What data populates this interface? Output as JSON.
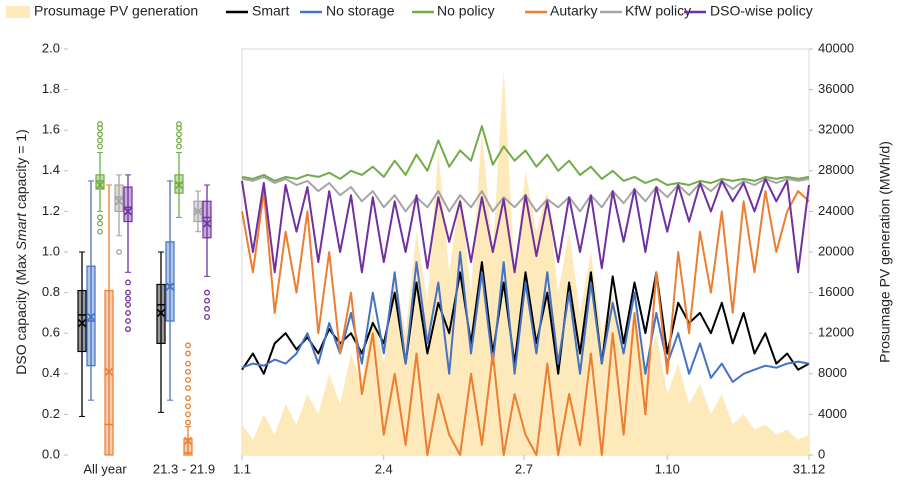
{
  "chart_data": [
    {
      "type": "box",
      "ylabel": [
        "DSO capacity (Max ",
        "Smart",
        " capacity = 1)"
      ],
      "ylim": [
        0,
        2
      ],
      "yticks": [
        {
          "value": 0,
          "label": "0.0"
        },
        {
          "value": 0.2,
          "label": "0.2"
        },
        {
          "value": 0.4,
          "label": "0.4"
        },
        {
          "value": 0.6,
          "label": "0.6"
        },
        {
          "value": 0.8,
          "label": "0.8"
        },
        {
          "value": 1,
          "label": "1.0"
        },
        {
          "value": 1.2,
          "label": "1.2"
        },
        {
          "value": 1.4,
          "label": "1.4"
        },
        {
          "value": 1.6,
          "label": "1.6"
        },
        {
          "value": 1.8,
          "label": "1.8"
        },
        {
          "value": 2,
          "label": "2.0"
        }
      ],
      "categories": [
        "All year",
        "21.3 - 21.9"
      ],
      "series": [
        {
          "color": "#000000",
          "boxes": [
            {
              "min": 0.19,
              "q1": 0.51,
              "median": 0.69,
              "q3": 0.81,
              "max": 1.0,
              "mean": 0.65,
              "outliers": []
            },
            {
              "min": 0.21,
              "q1": 0.55,
              "median": 0.74,
              "q3": 0.84,
              "max": 1.0,
              "mean": 0.7,
              "outliers": []
            }
          ]
        },
        {
          "color": "#4472c4",
          "boxes": [
            {
              "min": 0.27,
              "q1": 0.44,
              "median": 0.66,
              "q3": 0.93,
              "max": 1.35,
              "mean": 0.68,
              "outliers": []
            },
            {
              "min": 0.27,
              "q1": 0.66,
              "median": 0.84,
              "q3": 1.05,
              "max": 1.35,
              "mean": 0.83,
              "outliers": []
            }
          ]
        },
        {
          "color": "#70ad47",
          "boxes": [
            {
              "min": 1.2,
              "q1": 1.31,
              "median": 1.35,
              "q3": 1.38,
              "max": 1.49,
              "mean": 1.33,
              "outliers": [
                1.52,
                1.55,
                1.58,
                1.61,
                1.63,
                1.17,
                1.14,
                1.1
              ]
            },
            {
              "min": 1.17,
              "q1": 1.29,
              "median": 1.34,
              "q3": 1.38,
              "max": 1.49,
              "mean": 1.33,
              "outliers": [
                1.52,
                1.55,
                1.58,
                1.61,
                1.63
              ]
            }
          ]
        },
        {
          "color": "#ed7d31",
          "boxes": [
            {
              "min": 0,
              "q1": 0,
              "median": 0.15,
              "q3": 0.81,
              "max": 1.33,
              "mean": 0.41,
              "outliers": []
            },
            {
              "min": 0,
              "q1": 0,
              "median": 0.01,
              "q3": 0.08,
              "max": 0.14,
              "mean": 0.07,
              "outliers": [
                0.16,
                0.2,
                0.24,
                0.28,
                0.33,
                0.37,
                0.41,
                0.45,
                0.5,
                0.54
              ]
            }
          ]
        },
        {
          "color": "#a5a5a5",
          "boxes": [
            {
              "min": 1.08,
              "q1": 1.2,
              "median": 1.27,
              "q3": 1.33,
              "max": 1.38,
              "mean": 1.25,
              "outliers": [
                1.0
              ]
            },
            {
              "min": 1.1,
              "q1": 1.15,
              "median": 1.2,
              "q3": 1.25,
              "max": 1.3,
              "mean": 1.2,
              "outliers": []
            }
          ]
        },
        {
          "color": "#7030a0",
          "boxes": [
            {
              "min": 0.9,
              "q1": 1.15,
              "median": 1.22,
              "q3": 1.32,
              "max": 1.38,
              "mean": 1.2,
              "outliers": [
                0.85,
                0.8,
                0.77,
                0.74,
                0.7,
                0.66,
                0.62
              ]
            },
            {
              "min": 0.88,
              "q1": 1.07,
              "median": 1.17,
              "q3": 1.25,
              "max": 1.33,
              "mean": 1.14,
              "outliers": [
                0.8,
                0.76,
                0.72,
                0.68
              ]
            }
          ]
        }
      ]
    },
    {
      "type": "line",
      "x": [
        0,
        7,
        14,
        21,
        28,
        35,
        42,
        49,
        56,
        63,
        70,
        77,
        84,
        91,
        98,
        105,
        112,
        119,
        126,
        133,
        140,
        147,
        154,
        161,
        168,
        175,
        182,
        189,
        196,
        203,
        210,
        217,
        224,
        231,
        238,
        245,
        252,
        259,
        266,
        273,
        280,
        287,
        294,
        301,
        308,
        315,
        322,
        329,
        336,
        343,
        350,
        357,
        364
      ],
      "xlim": [
        0,
        364
      ],
      "xticks": [
        {
          "value": 0,
          "label": "1.1"
        },
        {
          "value": 91,
          "label": "2.4"
        },
        {
          "value": 181,
          "label": "2.7"
        },
        {
          "value": 273,
          "label": "1.10"
        },
        {
          "value": 364,
          "label": "31.12"
        }
      ],
      "ylim": [
        0,
        2
      ],
      "y2lim": [
        0,
        40000
      ],
      "y2ticks": [
        0,
        4000,
        8000,
        12000,
        16000,
        20000,
        24000,
        28000,
        32000,
        36000,
        40000
      ],
      "y2label": "Prosumage PV generation (MWh/d)",
      "series": [
        {
          "name": "Prosumage PV generation",
          "type": "area",
          "axis": "y2",
          "color": "#fde9b9",
          "values": [
            3000,
            1500,
            4000,
            2000,
            5000,
            3000,
            6000,
            4000,
            8000,
            5000,
            10000,
            7000,
            14000,
            9000,
            18000,
            12000,
            22000,
            15000,
            30000,
            18000,
            26000,
            16000,
            32000,
            20000,
            38000,
            18000,
            28000,
            22000,
            26000,
            16000,
            22000,
            14000,
            20000,
            12000,
            16000,
            10000,
            14000,
            8000,
            12000,
            6000,
            9000,
            5000,
            7000,
            4000,
            6000,
            3000,
            4000,
            2500,
            3000,
            2000,
            2500,
            1500,
            2000
          ]
        },
        {
          "name": "Smart",
          "color": "#000000",
          "values": [
            0.42,
            0.5,
            0.4,
            0.55,
            0.6,
            0.52,
            0.58,
            0.5,
            0.62,
            0.55,
            0.6,
            0.5,
            0.65,
            0.55,
            0.8,
            0.45,
            0.85,
            0.5,
            0.75,
            0.6,
            0.9,
            0.55,
            0.95,
            0.5,
            0.85,
            0.45,
            0.9,
            0.55,
            0.8,
            0.4,
            0.85,
            0.5,
            0.9,
            0.45,
            0.88,
            0.55,
            0.85,
            0.6,
            0.9,
            0.5,
            0.75,
            0.65,
            0.7,
            0.6,
            0.75,
            0.55,
            0.7,
            0.5,
            0.6,
            0.45,
            0.5,
            0.42,
            0.45
          ]
        },
        {
          "name": "No storage",
          "color": "#4472c4",
          "values": [
            0.43,
            0.45,
            0.44,
            0.47,
            0.45,
            0.5,
            0.6,
            0.45,
            0.65,
            0.5,
            0.7,
            0.45,
            0.8,
            0.5,
            0.9,
            0.45,
            0.95,
            0.55,
            0.85,
            0.4,
            1.0,
            0.5,
            0.9,
            0.45,
            0.95,
            0.4,
            0.85,
            0.5,
            0.9,
            0.45,
            0.8,
            0.4,
            0.85,
            0.45,
            0.75,
            0.5,
            0.8,
            0.4,
            0.7,
            0.45,
            0.6,
            0.4,
            0.55,
            0.38,
            0.45,
            0.36,
            0.4,
            0.42,
            0.44,
            0.43,
            0.45,
            0.46,
            0.45
          ]
        },
        {
          "name": "No policy",
          "color": "#70ad47",
          "values": [
            1.37,
            1.36,
            1.38,
            1.35,
            1.37,
            1.36,
            1.38,
            1.37,
            1.39,
            1.36,
            1.4,
            1.38,
            1.42,
            1.37,
            1.45,
            1.38,
            1.48,
            1.4,
            1.55,
            1.42,
            1.5,
            1.45,
            1.62,
            1.43,
            1.52,
            1.45,
            1.5,
            1.42,
            1.48,
            1.4,
            1.45,
            1.38,
            1.42,
            1.36,
            1.4,
            1.35,
            1.37,
            1.34,
            1.36,
            1.33,
            1.34,
            1.33,
            1.35,
            1.34,
            1.36,
            1.35,
            1.36,
            1.35,
            1.37,
            1.36,
            1.37,
            1.36,
            1.37
          ]
        },
        {
          "name": "Autarky",
          "color": "#ed7d31",
          "values": [
            1.2,
            0.9,
            1.3,
            0.7,
            1.1,
            0.8,
            1.2,
            0.6,
            1.0,
            0.5,
            0.8,
            0.3,
            0.6,
            0.1,
            0.4,
            0.05,
            0.5,
            0.0,
            0.3,
            0.1,
            0.0,
            0.4,
            0.05,
            0.5,
            0.0,
            0.3,
            0.1,
            0.0,
            0.45,
            0.0,
            0.3,
            0.05,
            0.5,
            0.0,
            0.6,
            0.1,
            0.7,
            0.2,
            0.9,
            0.4,
            1.0,
            0.6,
            1.1,
            0.8,
            1.2,
            0.7,
            1.25,
            0.9,
            1.3,
            1.0,
            1.2,
            1.3,
            1.25
          ]
        },
        {
          "name": "KfW policy",
          "color": "#a5a5a5",
          "values": [
            1.36,
            1.35,
            1.37,
            1.34,
            1.36,
            1.33,
            1.35,
            1.3,
            1.34,
            1.28,
            1.32,
            1.25,
            1.3,
            1.22,
            1.28,
            1.2,
            1.27,
            1.22,
            1.3,
            1.2,
            1.28,
            1.22,
            1.3,
            1.2,
            1.27,
            1.22,
            1.28,
            1.2,
            1.26,
            1.22,
            1.27,
            1.2,
            1.28,
            1.22,
            1.3,
            1.24,
            1.31,
            1.25,
            1.32,
            1.27,
            1.33,
            1.28,
            1.34,
            1.3,
            1.35,
            1.31,
            1.35,
            1.33,
            1.36,
            1.34,
            1.36,
            1.35,
            1.36
          ]
        },
        {
          "name": "DSO-wise policy",
          "color": "#7030a0",
          "values": [
            1.35,
            1.0,
            1.34,
            0.9,
            1.33,
            1.1,
            1.32,
            0.95,
            1.3,
            1.0,
            1.28,
            0.9,
            1.27,
            0.95,
            1.25,
            1.0,
            1.28,
            0.92,
            1.27,
            1.05,
            1.25,
            0.95,
            1.27,
            1.0,
            1.26,
            0.9,
            1.28,
            0.98,
            1.25,
            0.95,
            1.27,
            1.0,
            1.28,
            0.92,
            1.3,
            1.05,
            1.31,
            1.0,
            1.32,
            1.1,
            1.33,
            1.15,
            1.34,
            1.2,
            1.35,
            1.25,
            1.34,
            1.2,
            1.36,
            1.25,
            1.35,
            0.9,
            1.33
          ]
        }
      ]
    }
  ]
}
